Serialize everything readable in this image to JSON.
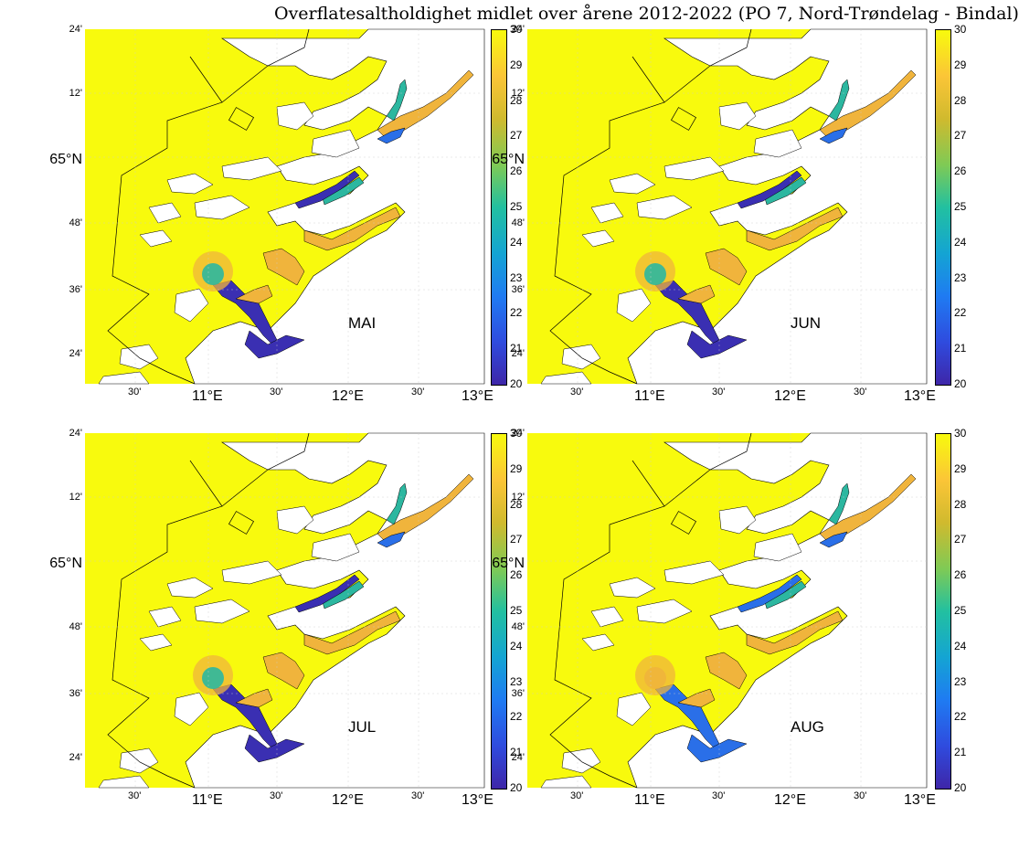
{
  "title": "Overflatesaltholdighet midlet over årene 2012-2022 (PO 7, Nord-Trøndelag - Bindal)",
  "colors": {
    "ocean_high": "#f8fa0d",
    "mid_orange": "#f0b43c",
    "green": "#7ec94f",
    "teal": "#2cb7a0",
    "blue": "#2a6fe8",
    "dark_blue": "#3a2fb2",
    "land": "#ffffff",
    "coast_line": "#000000"
  },
  "colorbar": {
    "ticks": [
      "30",
      "29",
      "28",
      "27",
      "26",
      "25",
      "24",
      "23",
      "22",
      "21",
      "20"
    ],
    "min": 20,
    "max": 30,
    "colormap": "parula"
  },
  "axes": {
    "lat_ticks": [
      "24'",
      "12'",
      "65°N",
      "48'",
      "36'",
      "24'"
    ],
    "lon_ticks": [
      "30'",
      "11°E",
      "30'",
      "12°E",
      "30'",
      "13°E"
    ]
  },
  "panels": [
    {
      "month": "MAI"
    },
    {
      "month": "JUN"
    },
    {
      "month": "JUL"
    },
    {
      "month": "AUG"
    }
  ]
}
